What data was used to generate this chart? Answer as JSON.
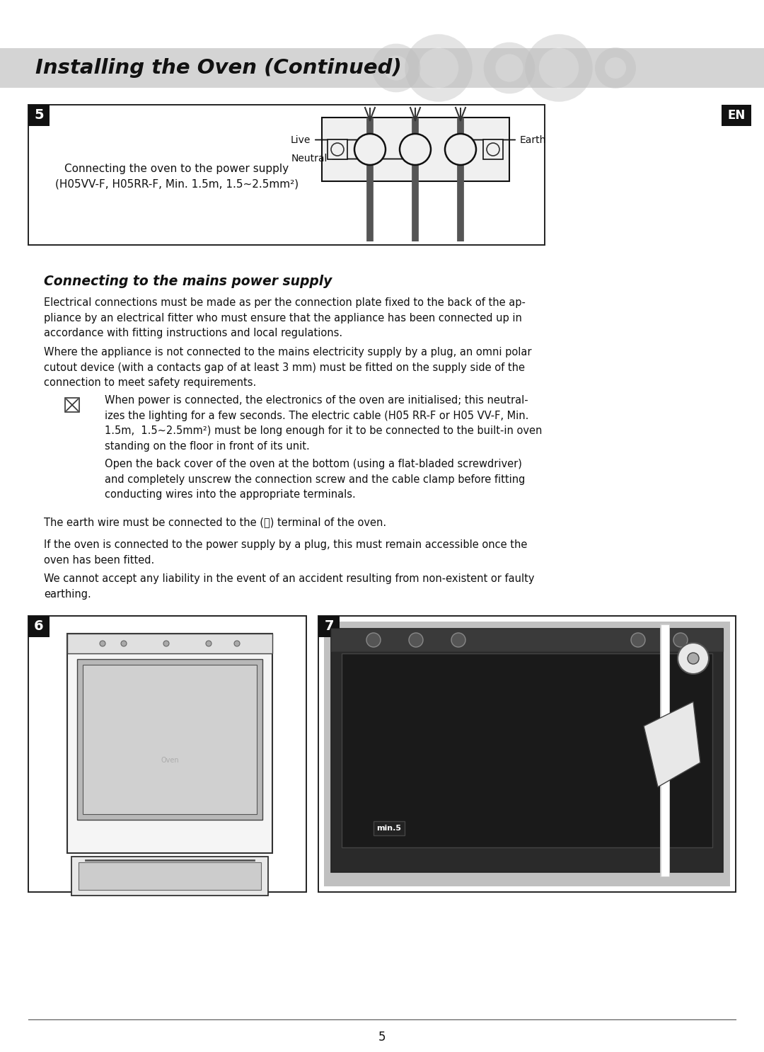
{
  "background_color": "#ffffff",
  "header_bg": "#d3d3d3",
  "header_text": "Installing the Oven (Continued)",
  "header_font_size": 20,
  "page_number": "5",
  "section5_label": "5",
  "en_label": "EN",
  "diagram_caption_line1": "Connecting the oven to the power supply",
  "diagram_caption_line2": "(H05VV-F, H05RR-F, Min. 1.5m, 1.5~2.5mm²)",
  "live_label": "Live",
  "neutral_label": "Neutral",
  "earth_label": "Earth",
  "section_title": "Connecting to the mains power supply",
  "para1": "Electrical connections must be made as per the connection plate fixed to the back of the ap-\npliance by an electrical fitter who must ensure that the appliance has been connected up in\naccordance with fitting instructions and local regulations.",
  "para2": "Where the appliance is not connected to the mains electricity supply by a plug, an omni polar\ncutout device (with a contacts gap of at least 3 mm) must be fitted on the supply side of the\nconnection to meet safety requirements.",
  "bullet_para1": "When power is connected, the electronics of the oven are initialised; this neutral-\nizes the lighting for a few seconds. The electric cable (H05 RR-F or H05 VV-F, Min.\n1.5m,  1.5~2.5mm²) must be long enough for it to be connected to the built-in oven\nstanding on the floor in front of its unit.",
  "bullet_para2": "Open the back cover of the oven at the bottom (using a flat-bladed screwdriver)\nand completely unscrew the connection screw and the cable clamp before fitting\nconducting wires into the appropriate terminals.",
  "para3": "The earth wire must be connected to the (⏚) terminal of the oven.",
  "para4": "If the oven is connected to the power supply by a plug, this must remain accessible once the\noven has been fitted.",
  "para5": "We cannot accept any liability in the event of an accident resulting from non-existent or faulty\nearthing.",
  "section6_label": "6",
  "section7_label": "7"
}
